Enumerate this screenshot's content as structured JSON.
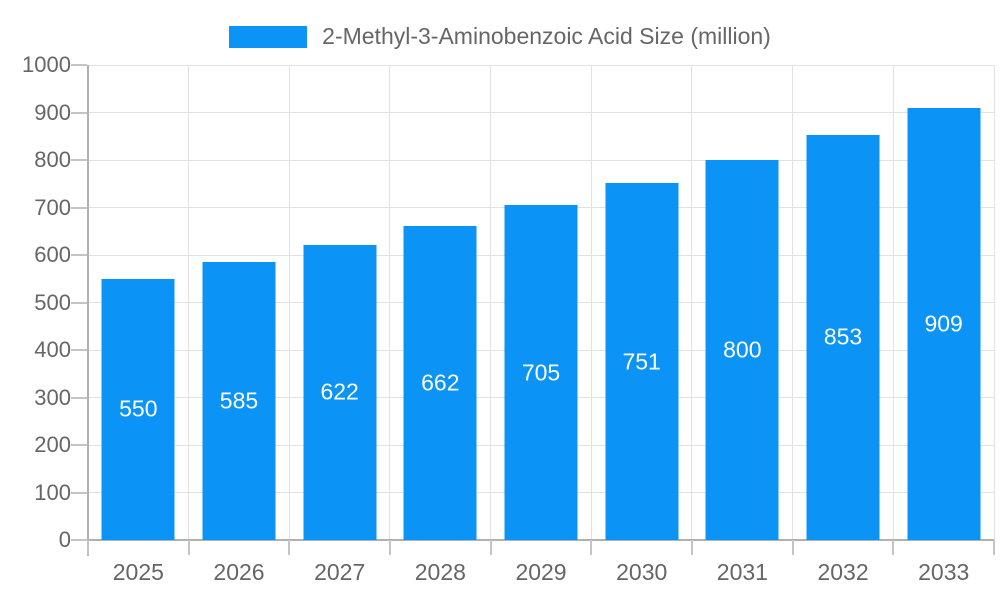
{
  "legend": {
    "label": "2-Methyl-3-Aminobenzoic Acid Size (million)"
  },
  "colors": {
    "bar": "#0b93f5",
    "grid": "#e2e2e2",
    "axis": "#b0b0b0",
    "tick": "#c4c4c4",
    "tick_label": "#666666",
    "value_label": "#ffffff",
    "background": "#ffffff"
  },
  "chart_data": {
    "type": "bar",
    "title": "2-Methyl-3-Aminobenzoic Acid Size (million)",
    "categories": [
      "2025",
      "2026",
      "2027",
      "2028",
      "2029",
      "2030",
      "2031",
      "2032",
      "2033"
    ],
    "values": [
      550,
      585,
      622,
      662,
      705,
      751,
      800,
      853,
      909
    ],
    "series_name": "2-Methyl-3-Aminobenzoic Acid Size (million)",
    "xlabel": "",
    "ylabel": "",
    "ylim": [
      0,
      1000
    ],
    "y_ticks": [
      0,
      100,
      200,
      300,
      400,
      500,
      600,
      700,
      800,
      900,
      1000
    ],
    "grid": "full-lattice",
    "legend_position": "top-center",
    "value_labels": "centered-inside-bars"
  }
}
